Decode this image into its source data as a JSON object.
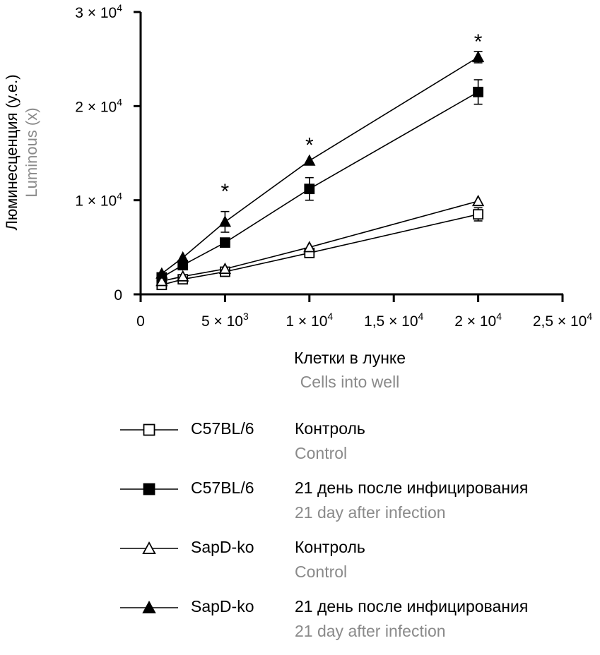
{
  "chart_data": {
    "type": "line",
    "ylabel": "Люминесценция (у.е.)",
    "ylabel_en": "Luminous (x)",
    "xlabel": "Клетки в лунке",
    "xlabel_en": "Cells into well",
    "xlim": [
      0,
      25000
    ],
    "ylim": [
      0,
      30000
    ],
    "x_ticks": [
      {
        "value": 0,
        "label": "0"
      },
      {
        "value": 5000,
        "label": "5 × 10",
        "exp": "3"
      },
      {
        "value": 10000,
        "label": "1 × 10",
        "exp": "4"
      },
      {
        "value": 15000,
        "label": "1,5 × 10",
        "exp": "4"
      },
      {
        "value": 20000,
        "label": "2 × 10",
        "exp": "4"
      },
      {
        "value": 25000,
        "label": "2,5 × 10",
        "exp": "4"
      }
    ],
    "y_ticks": [
      {
        "value": 0,
        "label": "0"
      },
      {
        "value": 10000,
        "label": "1 × 10",
        "exp": "4"
      },
      {
        "value": 20000,
        "label": "2 × 10",
        "exp": "4"
      },
      {
        "value": 30000,
        "label": "3 × 10",
        "exp": "4"
      }
    ],
    "x": [
      1250,
      2500,
      5000,
      10000,
      20000
    ],
    "series": [
      {
        "name": "C57BL/6 Контроль",
        "marker": "square-open",
        "values": [
          1000,
          1600,
          2400,
          4400,
          8500
        ],
        "errors": [
          0,
          0,
          0,
          0,
          700
        ]
      },
      {
        "name": "C57BL/6 21 день после инфицирования",
        "marker": "square-filled",
        "values": [
          1800,
          3100,
          5500,
          11200,
          21500
        ],
        "errors": [
          0,
          0,
          0,
          1200,
          1300
        ]
      },
      {
        "name": "SapD-ko Контроль",
        "marker": "triangle-open",
        "values": [
          1400,
          1900,
          2700,
          5000,
          9900
        ],
        "errors": [
          0,
          0,
          0,
          0,
          0
        ]
      },
      {
        "name": "SapD-ko 21 день после инфицирования",
        "marker": "triangle-filled",
        "values": [
          2200,
          3900,
          7700,
          14200,
          25200
        ],
        "errors": [
          0,
          0,
          1100,
          0,
          600
        ]
      }
    ],
    "annotations": [
      {
        "text": "*",
        "x": 5000,
        "y": 11400
      },
      {
        "text": "*",
        "x": 10000,
        "y": 16300
      },
      {
        "text": "*",
        "x": 20000,
        "y": 27300
      }
    ],
    "grid": false
  },
  "legend": [
    {
      "symbol": "square-open",
      "strain": "C57BL/6",
      "condition": "Контроль",
      "condition_en": "Control"
    },
    {
      "symbol": "square-filled",
      "strain": "C57BL/6",
      "condition": "21 день после инфицирования",
      "condition_en": "21 day after infection"
    },
    {
      "symbol": "triangle-open",
      "strain": "SapD-ko",
      "condition": "Контроль",
      "condition_en": "Control"
    },
    {
      "symbol": "triangle-filled",
      "strain": "SapD-ko",
      "condition": "21 день после инфицирования",
      "condition_en": "21 day after infection"
    }
  ]
}
